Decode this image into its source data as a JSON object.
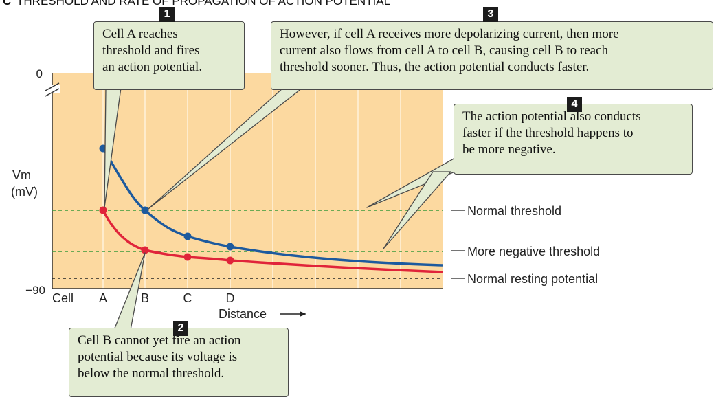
{
  "title": {
    "panel_letter": "C",
    "text": "THRESHOLD AND RATE OF PROPAGATION OF ACTION POTENTIAL"
  },
  "axis": {
    "y_label_line1": "Vm",
    "y_label_line2": "(mV)",
    "y_top_tick": "0",
    "y_bottom_tick": "−90",
    "x_cell_label": "Cell",
    "x_label": "Distance",
    "cells": [
      "A",
      "B",
      "C",
      "D"
    ]
  },
  "lines": {
    "normal_threshold": "Normal threshold",
    "more_negative_threshold": "More negative threshold",
    "resting_potential": "Normal resting potential"
  },
  "callouts": [
    {
      "number": "1",
      "text": "Cell A reaches\nthreshold and fires\nan action potential."
    },
    {
      "number": "2",
      "text": "Cell B cannot yet fire an action\npotential because its voltage  is\nbelow the normal threshold."
    },
    {
      "number": "3",
      "text": "However, if cell A receives more depolarizing current, then more\ncurrent also flows from cell A to cell B, causing cell B to reach\nthreshold sooner. Thus, the action potential conducts faster."
    },
    {
      "number": "4",
      "text": "The action potential also conducts\nfaster if the threshold happens to\nbe more negative."
    }
  ],
  "colors": {
    "background_panel": "#fcd9a0",
    "callout_fill": "#e3ecd3",
    "blue_curve": "#1d5a9e",
    "red_curve": "#e0243a",
    "threshold_dash": "#3a9a3a",
    "resting_dash": "#222222"
  }
}
